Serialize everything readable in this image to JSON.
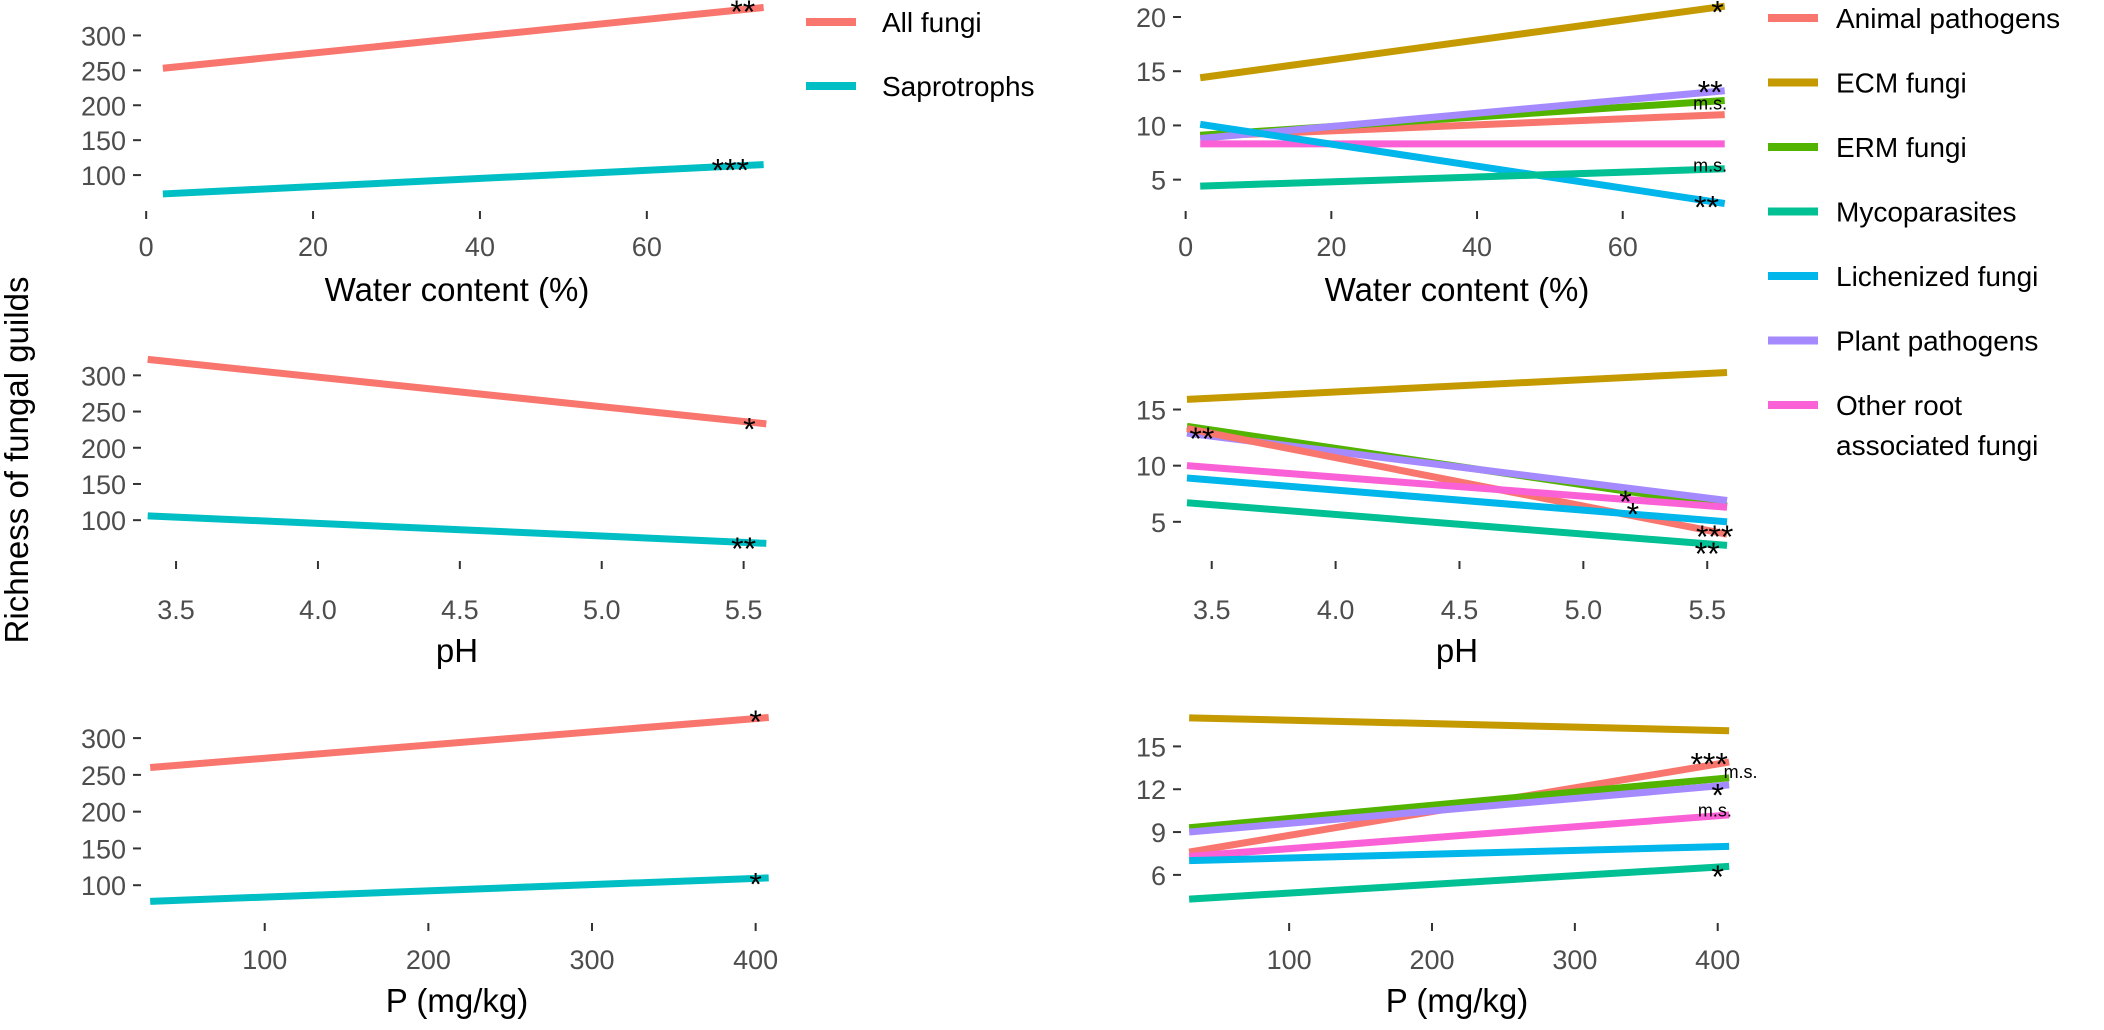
{
  "shared_ylabel": "Richness of fungal guilds",
  "colors": {
    "All fungi": "#F8766D",
    "Saprotrophs": "#00BFC4",
    "Animal pathogens": "#F8766D",
    "ECM fungi": "#C49A00",
    "ERM fungi": "#53B400",
    "Mycoparasites": "#00C094",
    "Lichenized fungi": "#00B6EB",
    "Plant pathogens": "#A58AFF",
    "Other root associated fungi": "#FB61D7"
  },
  "legend_left": {
    "items": [
      {
        "key": "All fungi",
        "label": "All fungi"
      },
      {
        "key": "Saprotrophs",
        "label": "Saprotrophs"
      }
    ]
  },
  "legend_right": {
    "items": [
      {
        "key": "Animal pathogens",
        "lines": [
          "Animal pathogens"
        ]
      },
      {
        "key": "ECM fungi",
        "lines": [
          "ECM fungi"
        ]
      },
      {
        "key": "ERM fungi",
        "lines": [
          "ERM fungi"
        ]
      },
      {
        "key": "Mycoparasites",
        "lines": [
          "Mycoparasites"
        ]
      },
      {
        "key": "Lichenized fungi",
        "lines": [
          "Lichenized fungi"
        ]
      },
      {
        "key": "Plant pathogens",
        "lines": [
          "Plant pathogens"
        ]
      },
      {
        "key": "Other root associated fungi",
        "lines": [
          "Other root",
          "associated fungi"
        ]
      }
    ]
  },
  "chart_data": [
    {
      "id": "left-water",
      "type": "line",
      "xlabel": "Water content (%)",
      "xlim": [
        -0.5,
        75
      ],
      "ylim": [
        50,
        345
      ],
      "xticks": [
        0,
        20,
        40,
        60
      ],
      "yticks": [
        100,
        150,
        200,
        250,
        300
      ],
      "series": [
        {
          "name": "All fungi",
          "x": [
            2,
            74
          ],
          "y": [
            253,
            340
          ],
          "sig": "**",
          "sig_y": 341,
          "sig_x": 71.5
        },
        {
          "name": "Saprotrophs",
          "x": [
            2,
            74
          ],
          "y": [
            73,
            115
          ],
          "sig": "***",
          "sig_y": 114,
          "sig_x": 70
        }
      ]
    },
    {
      "id": "right-water",
      "type": "line",
      "xlabel": "Water content (%)",
      "xlim": [
        -0.5,
        75
      ],
      "ylim": [
        2.2,
        21.2
      ],
      "xticks": [
        0,
        20,
        40,
        60
      ],
      "yticks": [
        5,
        10,
        15,
        20
      ],
      "series": [
        {
          "name": "ECM fungi",
          "x": [
            2,
            74
          ],
          "y": [
            14.4,
            21.0
          ],
          "sig": "*",
          "sig_y": 20.9,
          "sig_x": 73
        },
        {
          "name": "Animal pathogens",
          "x": [
            2,
            74
          ],
          "y": [
            9.0,
            11.0
          ],
          "sig": "",
          "sig_y": 11
        },
        {
          "name": "ERM fungi",
          "x": [
            2,
            74
          ],
          "y": [
            9.1,
            12.3
          ],
          "sig": "m.s.",
          "sig_y": 12.0,
          "sig_x": 72
        },
        {
          "name": "Plant pathogens",
          "x": [
            2,
            74
          ],
          "y": [
            8.8,
            13.2
          ],
          "sig": "**",
          "sig_y": 13.5,
          "sig_x": 72
        },
        {
          "name": "Other root associated fungi",
          "x": [
            2,
            74
          ],
          "y": [
            8.3,
            8.3
          ],
          "sig": "",
          "sig_y": 8.3
        },
        {
          "name": "Lichenized fungi",
          "x": [
            2,
            74
          ],
          "y": [
            10.1,
            2.8
          ],
          "sig": "**",
          "sig_y": 2.9,
          "sig_x": 71.5
        },
        {
          "name": "Mycoparasites",
          "x": [
            2,
            74
          ],
          "y": [
            4.4,
            6.0
          ],
          "sig": "m.s.",
          "sig_y": 6.3,
          "sig_x": 72
        }
      ]
    },
    {
      "id": "left-ph",
      "type": "line",
      "xlabel": "pH",
      "xlim": [
        3.38,
        5.6
      ],
      "ylim": [
        45,
        335
      ],
      "xticks": [
        3.5,
        4.0,
        4.5,
        5.0,
        5.5
      ],
      "yticks": [
        100,
        150,
        200,
        250,
        300
      ],
      "series": [
        {
          "name": "All fungi",
          "x": [
            3.4,
            5.58
          ],
          "y": [
            322,
            233
          ],
          "sig": "*",
          "sig_y": 232,
          "sig_x": 5.52
        },
        {
          "name": "Saprotrophs",
          "x": [
            3.4,
            5.58
          ],
          "y": [
            106,
            68
          ],
          "sig": "**",
          "sig_y": 67,
          "sig_x": 5.5
        }
      ]
    },
    {
      "id": "right-ph",
      "type": "line",
      "xlabel": "pH",
      "xlim": [
        3.38,
        5.6
      ],
      "ylim": [
        1.6,
        20.3
      ],
      "xticks": [
        3.5,
        4.0,
        4.5,
        5.0,
        5.5
      ],
      "yticks": [
        5,
        10,
        15
      ],
      "series": [
        {
          "name": "ECM fungi",
          "x": [
            3.4,
            5.58
          ],
          "y": [
            15.9,
            18.3
          ],
          "sig": "",
          "sig_y": 18.3
        },
        {
          "name": "ERM fungi",
          "x": [
            3.4,
            5.58
          ],
          "y": [
            13.5,
            6.4
          ],
          "sig": "*",
          "sig_y": 7.2,
          "sig_x": 5.17
        },
        {
          "name": "Plant pathogens",
          "x": [
            3.4,
            5.58
          ],
          "y": [
            12.9,
            6.9
          ],
          "sig": "**",
          "sig_y": 12.8,
          "sig_x": 3.46
        },
        {
          "name": "Animal pathogens",
          "x": [
            3.4,
            5.58
          ],
          "y": [
            13.3,
            3.9
          ],
          "sig": "***",
          "sig_y": 4.1,
          "sig_x": 5.53
        },
        {
          "name": "Other root associated fungi",
          "x": [
            3.4,
            5.58
          ],
          "y": [
            10.0,
            6.3
          ],
          "sig": "*",
          "sig_y": 6.1,
          "sig_x": 5.2
        },
        {
          "name": "Lichenized fungi",
          "x": [
            3.4,
            5.58
          ],
          "y": [
            8.9,
            5.0
          ],
          "sig": "",
          "sig_y": 5.0
        },
        {
          "name": "Mycoparasites",
          "x": [
            3.4,
            5.58
          ],
          "y": [
            6.7,
            2.9
          ],
          "sig": "**",
          "sig_y": 2.6,
          "sig_x": 5.5
        }
      ]
    },
    {
      "id": "left-p",
      "type": "line",
      "xlabel": "P (mg/kg)",
      "xlim": [
        25,
        410
      ],
      "ylim": [
        50,
        345
      ],
      "xticks": [
        100,
        200,
        300,
        400
      ],
      "yticks": [
        100,
        150,
        200,
        250,
        300
      ],
      "series": [
        {
          "name": "All fungi",
          "x": [
            30,
            408
          ],
          "y": [
            260,
            328
          ],
          "sig": "*",
          "sig_y": 329,
          "sig_x": 400
        },
        {
          "name": "Saprotrophs",
          "x": [
            30,
            408
          ],
          "y": [
            78,
            110
          ],
          "sig": "*",
          "sig_y": 108,
          "sig_x": 400
        }
      ]
    },
    {
      "id": "right-p",
      "type": "line",
      "xlabel": "P (mg/kg)",
      "xlim": [
        25,
        410
      ],
      "ylim": [
        2.7,
        17.9
      ],
      "xticks": [
        100,
        200,
        300,
        400
      ],
      "yticks": [
        6,
        9,
        12,
        15
      ],
      "series": [
        {
          "name": "ECM fungi",
          "x": [
            30,
            408
          ],
          "y": [
            17.0,
            16.1
          ],
          "sig": "",
          "sig_y": 16
        },
        {
          "name": "Animal pathogens",
          "x": [
            30,
            408
          ],
          "y": [
            7.6,
            13.9
          ],
          "sig": "***",
          "sig_y": 14.1,
          "sig_x": 394
        },
        {
          "name": "ERM fungi",
          "x": [
            30,
            408
          ],
          "y": [
            9.3,
            12.8
          ],
          "sig": "m.s.",
          "sig_y": 13.2,
          "sig_x": 416
        },
        {
          "name": "Plant pathogens",
          "x": [
            30,
            408
          ],
          "y": [
            9.0,
            12.3
          ],
          "sig": "*",
          "sig_y": 11.9,
          "sig_x": 400
        },
        {
          "name": "Other root associated fungi",
          "x": [
            30,
            408
          ],
          "y": [
            7.3,
            10.2
          ],
          "sig": "m.s.",
          "sig_y": 10.5,
          "sig_x": 398
        },
        {
          "name": "Lichenized fungi",
          "x": [
            30,
            408
          ],
          "y": [
            7.0,
            8.0
          ],
          "sig": "",
          "sig_y": 8.0
        },
        {
          "name": "Mycoparasites",
          "x": [
            30,
            408
          ],
          "y": [
            4.3,
            6.6
          ],
          "sig": "*",
          "sig_y": 6.2,
          "sig_x": 400
        }
      ]
    }
  ]
}
